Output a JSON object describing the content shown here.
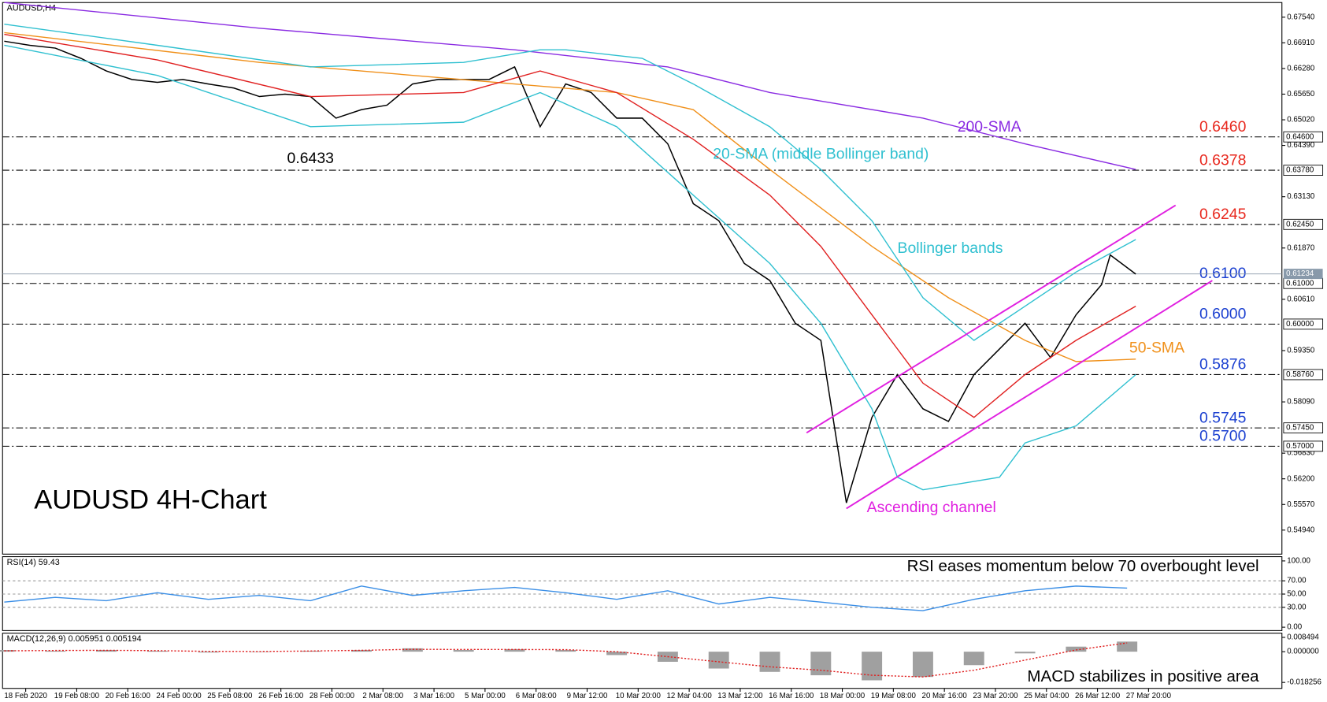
{
  "chart_data": [
    {
      "type": "line",
      "title": "AUDUSD,H4",
      "subtitle": "AUDUSD 4H-Chart",
      "xlim": [
        0,
        25
      ],
      "ylim": [
        0.5435,
        0.679
      ],
      "yticks": [
        {
          "value": 0.6754,
          "label": "0.67540"
        },
        {
          "value": 0.6691,
          "label": "0.66910"
        },
        {
          "value": 0.6628,
          "label": "0.66280"
        },
        {
          "value": 0.6565,
          "label": "0.65650"
        },
        {
          "value": 0.6502,
          "label": "0.65020"
        },
        {
          "value": 0.6439,
          "label": "0.64390"
        },
        {
          "value": 0.6313,
          "label": "0.63130"
        },
        {
          "value": 0.6187,
          "label": "0.61870"
        },
        {
          "value": 0.6061,
          "label": "0.60610"
        },
        {
          "value": 0.5935,
          "label": "0.59350"
        },
        {
          "value": 0.5809,
          "label": "0.58090"
        },
        {
          "value": 0.5683,
          "label": "0.56830"
        },
        {
          "value": 0.562,
          "label": "0.56200"
        },
        {
          "value": 0.5557,
          "label": "0.55570"
        },
        {
          "value": 0.5494,
          "label": "0.54940"
        }
      ],
      "series": [
        {
          "color": "#000000",
          "x": [
            0,
            0.5,
            1,
            1.5,
            2,
            2.5,
            3,
            3.5,
            4,
            4.5,
            5,
            5.5,
            6,
            6.5,
            7,
            7.5,
            8,
            8.5,
            9,
            9.5,
            10,
            10.5,
            11,
            11.5,
            12,
            12.5,
            13,
            13.5,
            14,
            14.5,
            15,
            15.5,
            16,
            16.5,
            17,
            17.5,
            18,
            18.5,
            19,
            19.5,
            20,
            20.5,
            21,
            21.5,
            21.67,
            22.17
          ],
          "values": [
            0.6695,
            0.6685,
            0.6678,
            0.6653,
            0.6622,
            0.6601,
            0.6594,
            0.6601,
            0.659,
            0.658,
            0.6559,
            0.6565,
            0.6559,
            0.6506,
            0.6527,
            0.6538,
            0.659,
            0.6601,
            0.6601,
            0.6601,
            0.6632,
            0.6485,
            0.659,
            0.6569,
            0.6506,
            0.6506,
            0.6443,
            0.6296,
            0.6254,
            0.6149,
            0.6107,
            0.6002,
            0.596,
            0.5561,
            0.5771,
            0.5876,
            0.5792,
            0.5761,
            0.5876,
            0.5939,
            0.6002,
            0.5918,
            0.6023,
            0.6097,
            0.617,
            0.6123
          ]
        },
        {
          "color": "#8a2be2",
          "x": [
            0,
            5,
            10,
            13,
            15,
            18,
            20,
            22.17
          ],
          "values": [
            0.679,
            0.6727,
            0.6674,
            0.6632,
            0.6569,
            0.6506,
            0.6443,
            0.638
          ]
        },
        {
          "color": "#f0901a",
          "x": [
            0,
            5,
            10,
            12,
            13.5,
            15,
            17,
            18.5,
            20,
            21,
            22.17
          ],
          "values": [
            0.6716,
            0.6643,
            0.659,
            0.6569,
            0.6527,
            0.638,
            0.6191,
            0.6065,
            0.596,
            0.5908,
            0.5914
          ]
        },
        {
          "color": "#30c0d0",
          "x": [
            0,
            3,
            6,
            9,
            10.5,
            11,
            12.5,
            13.5,
            15,
            16,
            17,
            18,
            19,
            20,
            21,
            22.17
          ],
          "values": [
            0.6737,
            0.6685,
            0.6632,
            0.6643,
            0.6674,
            0.6674,
            0.6653,
            0.659,
            0.6485,
            0.638,
            0.6254,
            0.6065,
            0.596,
            0.6044,
            0.6128,
            0.6208
          ]
        },
        {
          "color": "#30c0d0",
          "x": [
            0,
            3,
            6,
            9,
            10.5,
            12,
            13.5,
            15,
            16,
            17,
            17.5,
            18,
            19.5,
            20,
            21,
            22.17
          ],
          "values": [
            0.6685,
            0.6611,
            0.6485,
            0.6496,
            0.6569,
            0.6485,
            0.6317,
            0.6149,
            0.6002,
            0.5792,
            0.5624,
            0.5593,
            0.5624,
            0.5708,
            0.575,
            0.5876
          ]
        },
        {
          "color": "#e02020",
          "x": [
            0,
            3,
            6,
            9,
            10.5,
            12,
            13.5,
            15,
            16,
            17,
            18,
            19,
            20,
            21,
            22.17
          ],
          "values": [
            0.6712,
            0.6649,
            0.6559,
            0.6569,
            0.6622,
            0.6569,
            0.6454,
            0.6317,
            0.6191,
            0.6023,
            0.5855,
            0.5771,
            0.5876,
            0.596,
            0.6044
          ]
        }
      ],
      "levels": [
        {
          "value": 0.646,
          "label": "0.6460",
          "axis_label": "0.64600",
          "color": "#e8281e"
        },
        {
          "value": 0.6378,
          "label": "0.6378",
          "axis_label": "0.63780",
          "color": "#e8281e"
        },
        {
          "value": 0.6245,
          "label": "0.6245",
          "axis_label": "0.62450",
          "color": "#e8281e"
        },
        {
          "value": 0.61,
          "label": "0.6100",
          "axis_label": "0.61000",
          "color": "#1a3fd0"
        },
        {
          "value": 0.6,
          "label": "0.6000",
          "axis_label": "0.60000",
          "color": "#1a3fd0"
        },
        {
          "value": 0.5876,
          "label": "0.5876",
          "axis_label": "0.58760",
          "color": "#1a3fd0"
        },
        {
          "value": 0.5745,
          "label": "0.5745",
          "axis_label": "0.57450",
          "color": "#1a3fd0"
        },
        {
          "value": 0.57,
          "label": "0.5700",
          "axis_label": "0.57000",
          "color": "#1a3fd0"
        }
      ],
      "last_price": {
        "value": 0.61234,
        "label": "0.61234"
      },
      "channel": {
        "label": "Ascending channel",
        "color": "#e020e0",
        "lines": [
          {
            "x": [
              15.72,
              22.95
            ],
            "y": [
              0.5733,
              0.6292
            ]
          },
          {
            "x": [
              16.5,
              23.67
            ],
            "y": [
              0.5547,
              0.6107
            ]
          }
        ]
      },
      "annotations": [
        {
          "text": "0.6433",
          "color": "#000000"
        },
        {
          "text": "200-SMA",
          "color": "#8a2be2"
        },
        {
          "text": "20-SMA (middle Bollinger band)",
          "color": "#30c0d0"
        },
        {
          "text": "Bollinger bands",
          "color": "#30c0d0"
        },
        {
          "text": "50-SMA",
          "color": "#f0901a"
        }
      ]
    },
    {
      "type": "line",
      "title": "RSI(14) 59.43",
      "annotation": "RSI eases momentum below 70 overbought level",
      "xlim": [
        0,
        25
      ],
      "ylim": [
        -5.1,
        106.4
      ],
      "yticks": [
        {
          "value": 100,
          "label": "100.00"
        },
        {
          "value": 70,
          "label": "70.00"
        },
        {
          "value": 50,
          "label": "50.00"
        },
        {
          "value": 30,
          "label": "30.00"
        },
        {
          "value": 0,
          "label": "0.00"
        }
      ],
      "levels": [
        70,
        50,
        30
      ],
      "series": [
        {
          "color": "#3a8ee6",
          "x": [
            0,
            1,
            2,
            3,
            4,
            5,
            6,
            7,
            8,
            9,
            10,
            11,
            12,
            13,
            14,
            15,
            16,
            17,
            18,
            19,
            20,
            21,
            22
          ],
          "values": [
            38,
            45,
            40,
            52,
            42,
            48,
            40,
            62,
            48,
            55,
            60,
            52,
            42,
            55,
            35,
            45,
            38,
            30,
            25,
            42,
            55,
            62,
            59
          ]
        }
      ]
    },
    {
      "type": "bar",
      "title": "MACD(12,26,9) 0.005951 0.005194",
      "annotation": "MACD stabilizes in positive area",
      "xlim": [
        0,
        25
      ],
      "ylim": [
        -0.0218,
        0.011
      ],
      "yticks": [
        0.008494,
        {
          "value": 0,
          "label": "0.000000"
        },
        -0.018256
      ],
      "xticks": [
        {
          "value": 0.42,
          "label": "18 Feb 2020"
        },
        {
          "value": 1.42,
          "label": "19 Feb 08:00"
        },
        {
          "value": 2.42,
          "label": "20 Feb 16:00"
        },
        {
          "value": 3.42,
          "label": "24 Feb 00:00"
        },
        {
          "value": 4.42,
          "label": "25 Feb 08:00"
        },
        {
          "value": 5.42,
          "label": "26 Feb 16:00"
        },
        {
          "value": 6.42,
          "label": "28 Feb 00:00"
        },
        {
          "value": 7.42,
          "label": "2 Mar 08:00"
        },
        {
          "value": 8.42,
          "label": "3 Mar 16:00"
        },
        {
          "value": 9.42,
          "label": "5 Mar 00:00"
        },
        {
          "value": 10.42,
          "label": "6 Mar 08:00"
        },
        {
          "value": 11.42,
          "label": "9 Mar 12:00"
        },
        {
          "value": 12.42,
          "label": "10 Mar 20:00"
        },
        {
          "value": 13.42,
          "label": "12 Mar 04:00"
        },
        {
          "value": 14.42,
          "label": "13 Mar 12:00"
        },
        {
          "value": 15.42,
          "label": "16 Mar 16:00"
        },
        {
          "value": 16.42,
          "label": "18 Mar 00:00"
        },
        {
          "value": 17.42,
          "label": "19 Mar 08:00"
        },
        {
          "value": 18.42,
          "label": "20 Mar 16:00"
        },
        {
          "value": 19.42,
          "label": "23 Mar 20:00"
        },
        {
          "value": 20.42,
          "label": "25 Mar 04:00"
        },
        {
          "value": 21.42,
          "label": "26 Mar 12:00"
        },
        {
          "value": 22.42,
          "label": "27 Mar 20:00"
        }
      ],
      "series": [
        {
          "color": "#a0a0a0",
          "style": "bar",
          "x": [
            0,
            1,
            2,
            3,
            4,
            5,
            6,
            7,
            8,
            9,
            10,
            11,
            12,
            13,
            14,
            15,
            16,
            17,
            18,
            19,
            20,
            21,
            22
          ],
          "values": [
            0.001,
            0.0005,
            0.001,
            0.0005,
            -0.0005,
            0,
            0.0005,
            0.001,
            0.002,
            0.001,
            0.0015,
            0.001,
            -0.002,
            -0.006,
            -0.01,
            -0.012,
            -0.014,
            -0.017,
            -0.015,
            -0.008,
            -0.001,
            0.003,
            0.006
          ]
        },
        {
          "color": "#e02020",
          "style": "dotted",
          "x": [
            0,
            1,
            2,
            3,
            4,
            5,
            6,
            7,
            8,
            9,
            10,
            11,
            12,
            13,
            14,
            15,
            16,
            17,
            18,
            19,
            20,
            21,
            22
          ],
          "values": [
            0.0005,
            0.0007,
            0.0008,
            0.0006,
            0.0002,
            0.0001,
            0.0004,
            0.0008,
            0.0014,
            0.0013,
            0.0013,
            0.0012,
            0,
            -0.003,
            -0.006,
            -0.009,
            -0.011,
            -0.014,
            -0.015,
            -0.011,
            -0.005,
            0.001,
            0.0052
          ]
        }
      ]
    }
  ]
}
